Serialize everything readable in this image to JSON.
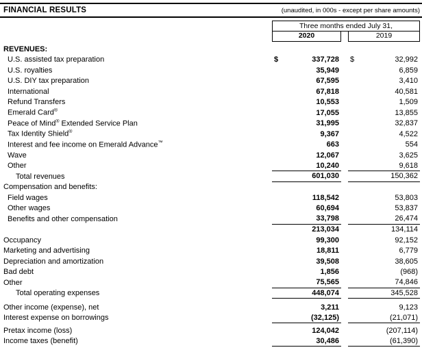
{
  "title": "FINANCIAL RESULTS",
  "note": "(unaudited, in 000s - except per share amounts)",
  "currency_symbol": "$",
  "colheader": {
    "span": "Three months ended July 31,",
    "col1": "2020",
    "col2": "2019"
  },
  "chart_data": {
    "type": "table",
    "title": "FINANCIAL RESULTS",
    "columns": [
      "2020",
      "2019"
    ]
  },
  "rows": [
    {
      "label": "REVENUES:",
      "indent": 0,
      "bold": true,
      "v2020": "",
      "v2019": ""
    },
    {
      "label": "U.S. assisted tax preparation",
      "indent": 1,
      "dollar": true,
      "v2020": "337,728",
      "v2019": "32,992"
    },
    {
      "label": "U.S. royalties",
      "indent": 1,
      "v2020": "35,949",
      "v2019": "6,859"
    },
    {
      "label": "U.S. DIY tax preparation",
      "indent": 1,
      "v2020": "67,595",
      "v2019": "3,410"
    },
    {
      "label": "International",
      "indent": 1,
      "v2020": "67,818",
      "v2019": "40,581"
    },
    {
      "label": "Refund Transfers",
      "indent": 1,
      "v2020": "10,553",
      "v2019": "1,509"
    },
    {
      "label": "Emerald Card®",
      "indent": 1,
      "v2020": "17,055",
      "v2019": "13,855"
    },
    {
      "label": "Peace of Mind® Extended Service Plan",
      "indent": 1,
      "v2020": "31,995",
      "v2019": "32,837"
    },
    {
      "label": "Tax Identity Shield®",
      "indent": 1,
      "v2020": "9,367",
      "v2019": "4,522"
    },
    {
      "label": "Interest and fee income on Emerald Advance™",
      "indent": 1,
      "v2020": "663",
      "v2019": "554"
    },
    {
      "label": "Wave",
      "indent": 1,
      "v2020": "12,067",
      "v2019": "3,625"
    },
    {
      "label": "Other",
      "indent": 1,
      "v2020": "10,240",
      "v2019": "9,618",
      "border_bottom": true
    },
    {
      "label": "Total revenues",
      "indent": 2,
      "v2020": "601,030",
      "v2019": "150,362",
      "border_bottom": true
    },
    {
      "label": "Compensation and benefits:",
      "indent": 0,
      "v2020": "",
      "v2019": ""
    },
    {
      "label": "Field wages",
      "indent": 1,
      "v2020": "118,542",
      "v2019": "53,803"
    },
    {
      "label": "Other wages",
      "indent": 1,
      "v2020": "60,694",
      "v2019": "53,837"
    },
    {
      "label": "Benefits and other compensation",
      "indent": 1,
      "v2020": "33,798",
      "v2019": "26,474",
      "border_bottom": true
    },
    {
      "label": "",
      "indent": 0,
      "v2020": "213,034",
      "v2019": "134,114"
    },
    {
      "label": "Occupancy",
      "indent": 0,
      "v2020": "99,300",
      "v2019": "92,152"
    },
    {
      "label": "Marketing and advertising",
      "indent": 0,
      "v2020": "18,811",
      "v2019": "6,779"
    },
    {
      "label": "Depreciation and amortization",
      "indent": 0,
      "v2020": "39,508",
      "v2019": "38,605"
    },
    {
      "label": "Bad debt",
      "indent": 0,
      "v2020": "1,856",
      "v2019": "(968)"
    },
    {
      "label": "Other",
      "indent": 0,
      "v2020": "75,565",
      "v2019": "74,846",
      "border_bottom": true
    },
    {
      "label": "Total operating expenses",
      "indent": 2,
      "v2020": "448,074",
      "v2019": "345,528",
      "border_bottom": true
    },
    {
      "label": "Other income (expense), net",
      "indent": 0,
      "gap_before": 1,
      "v2020": "3,211",
      "v2019": "9,123"
    },
    {
      "label": "Interest expense on borrowings",
      "indent": 0,
      "v2020": "(32,125)",
      "v2019": "(21,071)",
      "border_bottom": true
    },
    {
      "label": "Pretax income (loss)",
      "indent": 0,
      "gap_before": 2,
      "v2020": "124,042",
      "v2019": "(207,114)"
    },
    {
      "label": "Income taxes (benefit)",
      "indent": 0,
      "v2020": "30,486",
      "v2019": "(61,390)",
      "border_bottom": true
    }
  ]
}
